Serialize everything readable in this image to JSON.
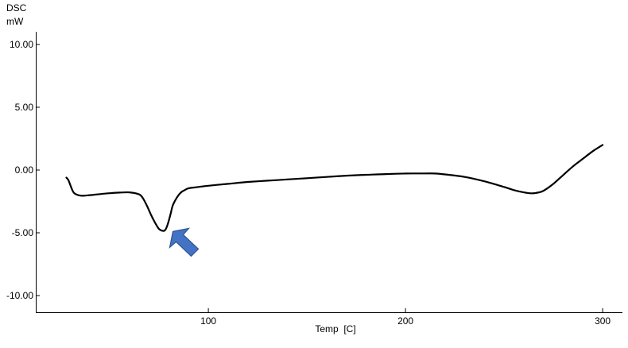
{
  "chart_data": {
    "type": "line",
    "title": "",
    "ylabel_line1": "DSC",
    "ylabel_line2": "mW",
    "xlabel": "Temp  [C]",
    "xlim": [
      20,
      310
    ],
    "ylim": [
      -11,
      11
    ],
    "x_ticks": [
      100,
      200,
      300
    ],
    "x_tick_labels": [
      "100",
      "200",
      "300"
    ],
    "y_ticks": [
      10,
      5,
      0,
      -5,
      -10
    ],
    "y_tick_labels": [
      "10.00",
      "5.00",
      "0.00",
      "-5.00",
      "-10.00"
    ],
    "grid": false,
    "legend": "none",
    "line_color": "#000000",
    "series": [
      {
        "x": [
          28,
          29,
          30,
          31,
          32,
          34,
          36,
          40,
          45,
          50,
          55,
          60,
          65,
          67,
          69,
          71,
          73,
          75,
          77,
          78,
          79,
          80,
          81,
          82,
          84,
          86,
          88,
          90,
          95,
          100,
          110,
          120,
          130,
          140,
          150,
          160,
          170,
          180,
          190,
          200,
          210,
          215,
          220,
          230,
          240,
          250,
          255,
          260,
          263,
          266,
          270,
          275,
          280,
          285,
          290,
          295,
          300
        ],
        "y": [
          -0.6,
          -0.8,
          -1.2,
          -1.6,
          -1.85,
          -2.0,
          -2.05,
          -2.0,
          -1.92,
          -1.85,
          -1.8,
          -1.78,
          -1.95,
          -2.3,
          -2.9,
          -3.6,
          -4.2,
          -4.7,
          -4.85,
          -4.8,
          -4.5,
          -4.0,
          -3.4,
          -2.8,
          -2.2,
          -1.8,
          -1.6,
          -1.45,
          -1.35,
          -1.25,
          -1.1,
          -0.95,
          -0.85,
          -0.75,
          -0.65,
          -0.55,
          -0.45,
          -0.38,
          -0.32,
          -0.28,
          -0.27,
          -0.28,
          -0.35,
          -0.55,
          -0.9,
          -1.35,
          -1.6,
          -1.78,
          -1.85,
          -1.83,
          -1.65,
          -1.1,
          -0.4,
          0.3,
          0.9,
          1.5,
          2.0
        ]
      }
    ],
    "annotation": {
      "type": "arrow",
      "x": 82,
      "y": -4.9,
      "color": "#4472c4",
      "stroke": "#2f5597"
    }
  }
}
